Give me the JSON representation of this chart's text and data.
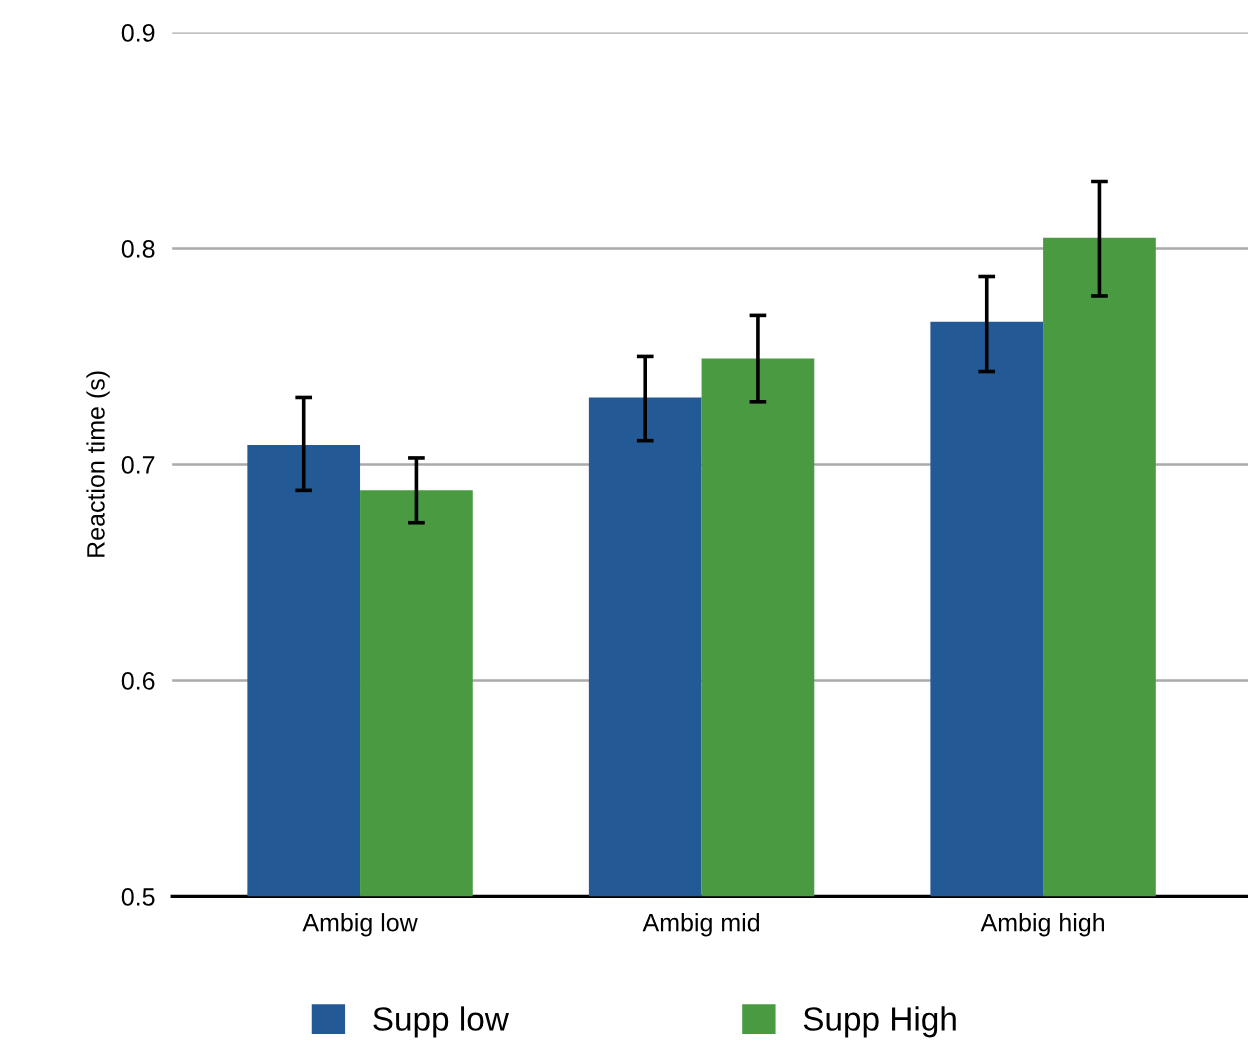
{
  "chart_data": {
    "type": "bar",
    "ylabel": "Reaction time (s)",
    "categories": [
      "Ambig low",
      "Ambig mid",
      "Ambig high"
    ],
    "series": [
      {
        "name": "Supp low",
        "color": "#235a95",
        "values": [
          0.709,
          0.731,
          0.766
        ],
        "errors": [
          [
            0.688,
            0.731
          ],
          [
            0.711,
            0.75
          ],
          [
            0.743,
            0.787
          ]
        ]
      },
      {
        "name": "Supp High",
        "color": "#4a9a42",
        "values": [
          0.688,
          0.749,
          0.805
        ],
        "errors": [
          [
            0.673,
            0.703
          ],
          [
            0.729,
            0.769
          ],
          [
            0.778,
            0.831
          ]
        ]
      }
    ],
    "ylim": [
      0.5,
      0.9
    ],
    "yticks": [
      0.5,
      0.6,
      0.7,
      0.8,
      0.9
    ],
    "grid": "y",
    "legend": "bottom"
  }
}
